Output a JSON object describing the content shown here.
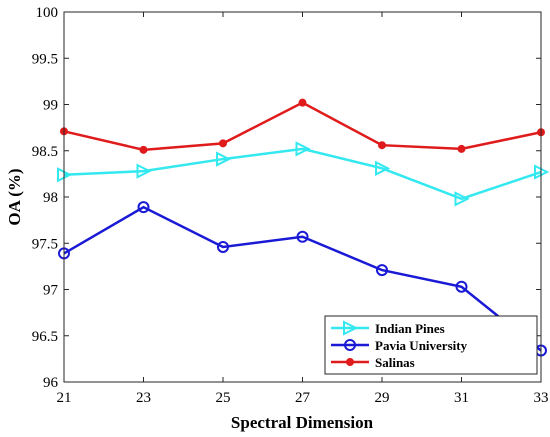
{
  "chart_data": {
    "type": "line",
    "xlabel": "Spectral Dimension",
    "ylabel": "OA (%)",
    "x": [
      21,
      23,
      25,
      27,
      29,
      31,
      33
    ],
    "xticks": [
      "21",
      "23",
      "25",
      "27",
      "29",
      "31",
      "33"
    ],
    "yticks": [
      "96",
      "96.5",
      "97",
      "97.5",
      "98",
      "98.5",
      "99",
      "99.5",
      "100"
    ],
    "xlim": [
      21,
      33
    ],
    "ylim": [
      96,
      100
    ],
    "grid": false,
    "legend_position": "bottom-right",
    "series": [
      {
        "name": "Indian Pines",
        "color": "#33e8ef",
        "marker": "triangle-right",
        "values": [
          98.24,
          98.28,
          98.41,
          98.52,
          98.31,
          97.98,
          98.27
        ]
      },
      {
        "name": "Pavia University",
        "color": "#1a1ad6",
        "marker": "circle-open",
        "values": [
          97.39,
          97.89,
          97.46,
          97.57,
          97.21,
          97.03,
          96.34
        ]
      },
      {
        "name": "Salinas",
        "color": "#e01b1b",
        "marker": "circle-filled",
        "values": [
          98.71,
          98.51,
          98.58,
          99.02,
          98.56,
          98.52,
          98.7
        ]
      }
    ]
  }
}
